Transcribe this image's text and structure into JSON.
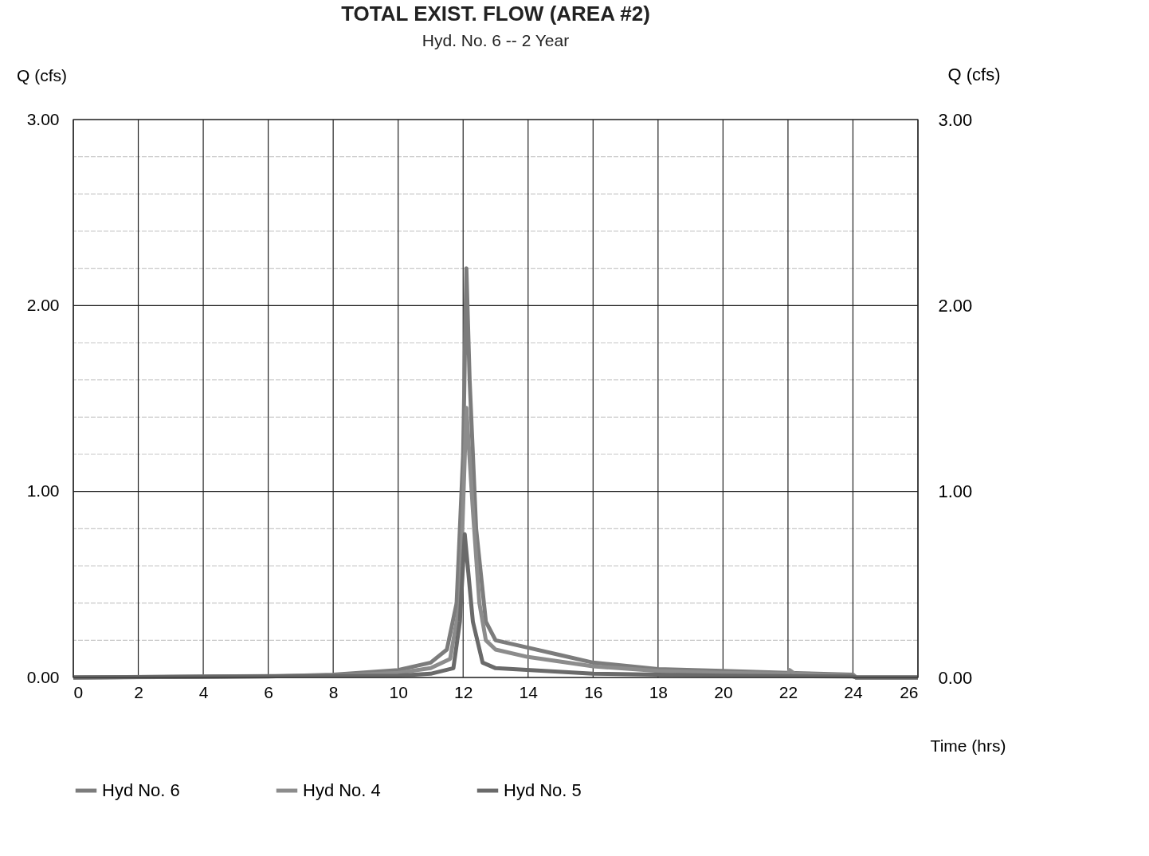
{
  "chart_data": {
    "type": "line",
    "title": "TOTAL EXIST. FLOW (AREA #2)",
    "subtitle": "Hyd. No. 6 -- 2 Year",
    "xlabel": "Time (hrs)",
    "ylabel": "Q (cfs)",
    "y2label": "Q (cfs)",
    "xlim": [
      0,
      26
    ],
    "xticks": [
      0,
      2,
      4,
      6,
      8,
      10,
      12,
      14,
      16,
      18,
      20,
      22,
      24,
      26
    ],
    "ylim": [
      0,
      3
    ],
    "yticks": [
      {
        "value": 0,
        "label": "0.00"
      },
      {
        "value": 0.2,
        "label": null
      },
      {
        "value": 0.4,
        "label": null
      },
      {
        "value": 0.6,
        "label": null
      },
      {
        "value": 0.8,
        "label": null
      },
      {
        "value": 1,
        "label": "1.00"
      },
      {
        "value": 1.2,
        "label": null
      },
      {
        "value": 1.4,
        "label": null
      },
      {
        "value": 1.6,
        "label": null
      },
      {
        "value": 1.8,
        "label": null
      },
      {
        "value": 2,
        "label": "2.00"
      },
      {
        "value": 2.2,
        "label": null
      },
      {
        "value": 2.4,
        "label": null
      },
      {
        "value": 2.6,
        "label": null
      },
      {
        "value": 2.8,
        "label": null
      },
      {
        "value": 3,
        "label": "3.00"
      }
    ],
    "y2lim": [
      0,
      3
    ],
    "y2ticks": [
      {
        "value": 0,
        "label": "0.00"
      },
      {
        "value": 1,
        "label": "1.00"
      },
      {
        "value": 2,
        "label": "2.00"
      },
      {
        "value": 3,
        "label": "3.00"
      }
    ],
    "grid": true,
    "legend": "bottom",
    "marker": "none",
    "line_style": "solid",
    "series": [
      {
        "name": "Hyd No. 6",
        "color": "#7c7c7c",
        "x": [
          0,
          6,
          8,
          10,
          11,
          11.5,
          11.8,
          12.0,
          12.1,
          12.2,
          12.4,
          12.7,
          13,
          14,
          15,
          16,
          18,
          20,
          22,
          24,
          24.1,
          26
        ],
        "values": [
          0,
          0.005,
          0.015,
          0.04,
          0.08,
          0.15,
          0.4,
          1.2,
          2.2,
          1.6,
          0.8,
          0.3,
          0.2,
          0.16,
          0.12,
          0.08,
          0.045,
          0.035,
          0.025,
          0.015,
          0,
          0
        ]
      },
      {
        "name": "Hyd No. 4",
        "color": "#8c8c8c",
        "x": [
          0,
          8,
          10,
          11,
          11.6,
          11.9,
          12.1,
          12.3,
          12.5,
          12.7,
          13,
          14,
          16,
          18,
          20,
          22,
          22.05,
          22.2,
          24,
          24.1,
          26
        ],
        "values": [
          0,
          0.01,
          0.025,
          0.05,
          0.1,
          0.4,
          1.45,
          0.9,
          0.4,
          0.2,
          0.15,
          0.11,
          0.06,
          0.035,
          0.025,
          0.02,
          0.04,
          0.02,
          0.01,
          0,
          0
        ]
      },
      {
        "name": "Hyd No. 5",
        "color": "#6a6a6a",
        "x": [
          0,
          10,
          11,
          11.7,
          11.9,
          12.05,
          12.3,
          12.6,
          13,
          16,
          20,
          24,
          24.1,
          26
        ],
        "values": [
          0,
          0.01,
          0.02,
          0.05,
          0.3,
          0.77,
          0.3,
          0.08,
          0.05,
          0.02,
          0.01,
          0.005,
          0,
          0
        ]
      }
    ]
  }
}
